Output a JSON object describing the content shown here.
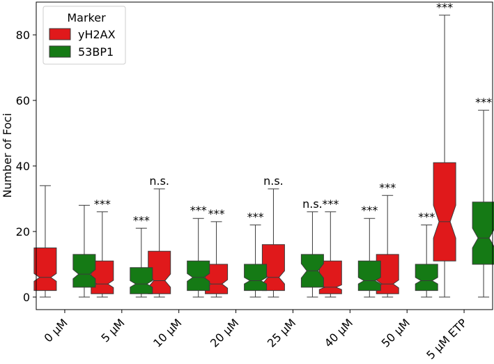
{
  "chart_data": {
    "type": "boxplot",
    "ylabel": "Number of Foci",
    "xlabel": "",
    "ylim": [
      -4,
      90
    ],
    "yticks": [
      0,
      20,
      40,
      60,
      80
    ],
    "categories": [
      "0 µM",
      "5 µM",
      "10 µM",
      "20 µM",
      "25 µM",
      "40 µM",
      "50 µM",
      "5 µM ETP"
    ],
    "legend": {
      "title": "Marker",
      "placement": "top-left",
      "entries": [
        "yH2AX",
        "53BP1"
      ]
    },
    "colors": {
      "yH2AX": "#e0191b",
      "53BP1": "#157a15"
    },
    "series": [
      {
        "name": "yH2AX",
        "boxes": [
          {
            "whislo": 0,
            "q1": 2,
            "med": 6,
            "q3": 15,
            "whishi": 34,
            "notch": [
              4.8,
              7.2
            ],
            "sig": ""
          },
          {
            "whislo": 0,
            "q1": 1,
            "med": 4,
            "q3": 11,
            "whishi": 26,
            "notch": [
              2.9,
              5.1
            ],
            "sig": "***"
          },
          {
            "whislo": 0,
            "q1": 1,
            "med": 5,
            "q3": 14,
            "whishi": 33,
            "notch": [
              3.0,
              7.0
            ],
            "sig": "n.s."
          },
          {
            "whislo": 0,
            "q1": 1,
            "med": 4,
            "q3": 10,
            "whishi": 23,
            "notch": [
              2.7,
              5.3
            ],
            "sig": "***"
          },
          {
            "whislo": 0,
            "q1": 2,
            "med": 6,
            "q3": 16,
            "whishi": 33,
            "notch": [
              4.0,
              8.0
            ],
            "sig": "n.s."
          },
          {
            "whislo": 0,
            "q1": 1,
            "med": 3,
            "q3": 11,
            "whishi": 26,
            "notch": [
              2.3,
              3.7
            ],
            "sig": "***"
          },
          {
            "whislo": 0,
            "q1": 1,
            "med": 4,
            "q3": 13,
            "whishi": 31,
            "notch": [
              2.8,
              5.2
            ],
            "sig": "***"
          },
          {
            "whislo": 0,
            "q1": 11,
            "med": 23,
            "q3": 41,
            "whishi": 86,
            "notch": [
              18.0,
              28.0
            ],
            "sig": "***"
          }
        ]
      },
      {
        "name": "53BP1",
        "boxes": [
          {
            "whislo": 0,
            "q1": 3,
            "med": 7,
            "q3": 13,
            "whishi": 28,
            "notch": [
              5.6,
              8.4
            ],
            "sig": ""
          },
          {
            "whislo": 0,
            "q1": 1,
            "med": 4,
            "q3": 9,
            "whishi": 21,
            "notch": [
              3.0,
              5.0
            ],
            "sig": "***"
          },
          {
            "whislo": 0,
            "q1": 2,
            "med": 6,
            "q3": 11,
            "whishi": 24,
            "notch": [
              4.8,
              7.2
            ],
            "sig": "***"
          },
          {
            "whislo": 0,
            "q1": 2,
            "med": 5,
            "q3": 10,
            "whishi": 22,
            "notch": [
              4.0,
              6.0
            ],
            "sig": "***"
          },
          {
            "whislo": 0,
            "q1": 3,
            "med": 8,
            "q3": 13,
            "whishi": 26,
            "notch": [
              5.8,
              10.2
            ],
            "sig": "n.s."
          },
          {
            "whislo": 0,
            "q1": 2,
            "med": 5,
            "q3": 11,
            "whishi": 24,
            "notch": [
              4.0,
              6.0
            ],
            "sig": "***"
          },
          {
            "whislo": 0,
            "q1": 2,
            "med": 5,
            "q3": 10,
            "whishi": 22,
            "notch": [
              4.0,
              6.0
            ],
            "sig": "***"
          },
          {
            "whislo": 0,
            "q1": 10,
            "med": 18,
            "q3": 29,
            "whishi": 57,
            "notch": [
              15.0,
              21.0
            ],
            "sig": "***"
          }
        ]
      }
    ]
  }
}
